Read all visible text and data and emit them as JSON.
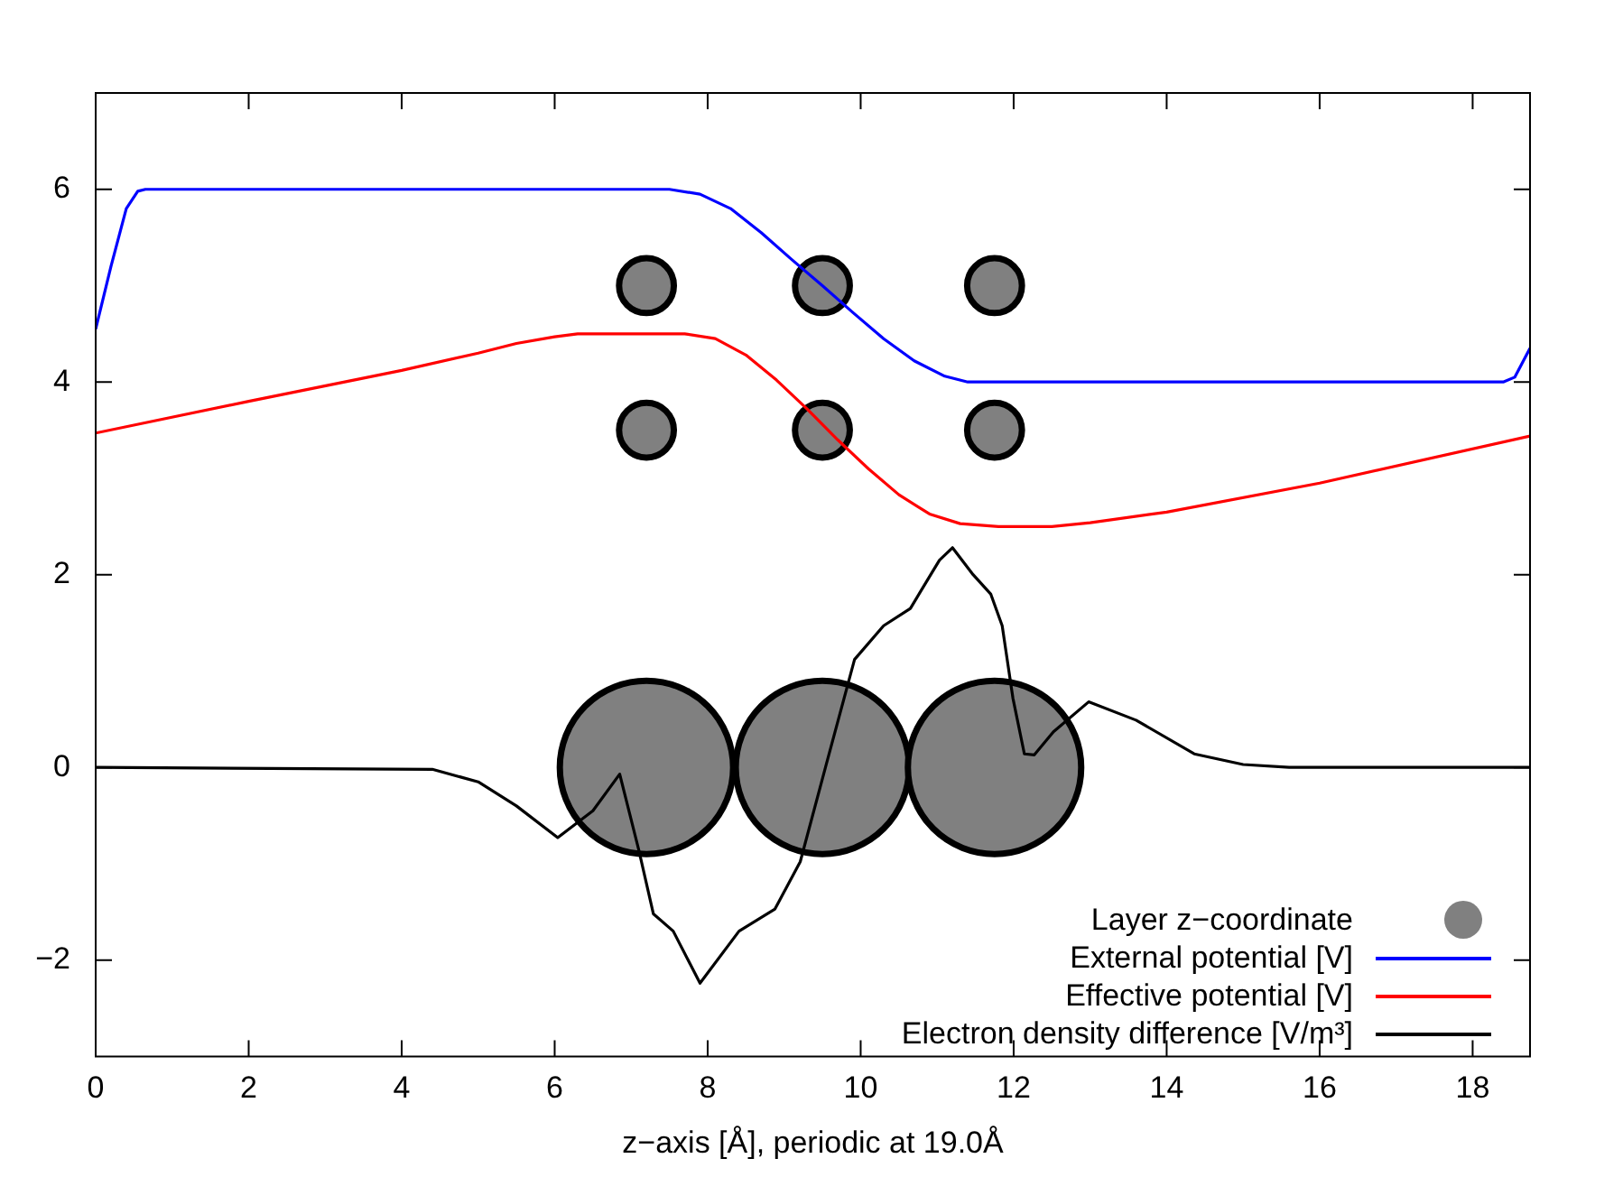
{
  "chart_data": {
    "type": "line",
    "xlabel": "z−axis [Å], periodic at 19.0Å",
    "xlim": [
      0,
      18.75
    ],
    "xticks": [
      0,
      2,
      4,
      6,
      8,
      10,
      12,
      14,
      16,
      18
    ],
    "ylim": [
      -3,
      7
    ],
    "yticks": [
      {
        "value": -2,
        "label": "−2"
      },
      0,
      2,
      4,
      6
    ],
    "grid": false,
    "legend": "bottom right",
    "marker": "none",
    "line_style": "solid",
    "series": [
      {
        "name": "Layer z−coordinate",
        "type": "bubble",
        "marker": "circle",
        "color": "#808080",
        "x": [
          7.2,
          9.5,
          11.75,
          7.2,
          9.5,
          11.75,
          7.2,
          9.5,
          11.75
        ],
        "values": [
          5,
          5,
          5,
          3.5,
          3.5,
          3.5,
          0,
          0,
          0
        ],
        "sizes": [
          0.1,
          0.1,
          0.1,
          0.1,
          0.1,
          0.1,
          1,
          1,
          1
        ]
      },
      {
        "name": "External potential [V]",
        "type": "line",
        "color": "#0000ff",
        "x": [
          0,
          0.2,
          0.4,
          0.55,
          0.65,
          7.5,
          7.9,
          8.3,
          8.7,
          9.1,
          9.5,
          9.9,
          10.3,
          10.7,
          11.1,
          11.4,
          18.4,
          18.55,
          18.75
        ],
        "values": [
          4.55,
          5.2,
          5.8,
          5.98,
          6,
          6,
          5.95,
          5.8,
          5.55,
          5.27,
          5.0,
          4.72,
          4.45,
          4.22,
          4.06,
          4.0,
          4.0,
          4.05,
          4.35
        ]
      },
      {
        "name": "Effective potential [V]",
        "type": "line",
        "color": "#ff0000",
        "x": [
          0,
          2,
          4,
          5,
          5.5,
          6,
          6.3,
          7.7,
          8.1,
          8.5,
          8.9,
          9.3,
          9.7,
          10.1,
          10.5,
          10.9,
          11.3,
          11.8,
          12.5,
          13,
          14,
          16,
          18.75
        ],
        "values": [
          3.47,
          3.8,
          4.12,
          4.3,
          4.4,
          4.47,
          4.5,
          4.5,
          4.45,
          4.28,
          4.02,
          3.72,
          3.4,
          3.1,
          2.83,
          2.63,
          2.53,
          2.5,
          2.5,
          2.54,
          2.65,
          2.95,
          3.44
        ]
      },
      {
        "name": "Electron density difference [V/m³]",
        "type": "line",
        "color": "#000000",
        "x": [
          0,
          4.4,
          5,
          5.5,
          6.04,
          6.5,
          6.85,
          7.1,
          7.29,
          7.55,
          7.9,
          8.41,
          8.88,
          9.21,
          9.54,
          9.92,
          10.3,
          10.65,
          11.03,
          11.2,
          11.47,
          11.7,
          11.85,
          11.99,
          12.14,
          12.27,
          12.52,
          12.98,
          13.6,
          14.36,
          15,
          15.6,
          18.75
        ],
        "values": [
          0,
          -0.02,
          -0.15,
          -0.4,
          -0.73,
          -0.45,
          -0.07,
          -0.86,
          -1.52,
          -1.7,
          -2.24,
          -1.7,
          -1.47,
          -0.98,
          0,
          1.12,
          1.47,
          1.65,
          2.15,
          2.28,
          2.0,
          1.8,
          1.47,
          0.72,
          0.14,
          0.13,
          0.37,
          0.68,
          0.49,
          0.14,
          0.03,
          0,
          0
        ]
      }
    ]
  }
}
